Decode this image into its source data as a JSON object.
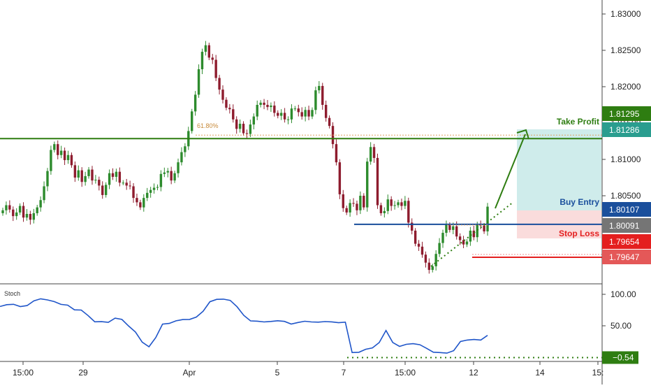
{
  "chart_data": {
    "type": "candlestick",
    "price_axis": {
      "ticks": [
        "1.83000",
        "1.82500",
        "1.82000",
        "1.81500",
        "1.81000",
        "1.80500"
      ],
      "range": [
        1.7935,
        1.8335
      ]
    },
    "time_axis": {
      "ticks": [
        "15:00",
        "29",
        "Apr",
        "5",
        "7",
        "15:00",
        "12",
        "14",
        "15:"
      ]
    },
    "candles_close": [
      1.803,
      1.8037,
      1.8031,
      1.8022,
      1.8027,
      1.8036,
      1.802,
      1.8025,
      1.8017,
      1.8026,
      1.8034,
      1.8044,
      1.8063,
      1.8084,
      1.8113,
      1.8121,
      1.8106,
      1.8112,
      1.8099,
      1.8106,
      1.8092,
      1.8075,
      1.8085,
      1.8069,
      1.8077,
      1.8086,
      1.8071,
      1.8072,
      1.8064,
      1.8051,
      1.8065,
      1.8081,
      1.8076,
      1.8083,
      1.8068,
      1.8068,
      1.8064,
      1.8063,
      1.8047,
      1.8041,
      1.8034,
      1.8047,
      1.8054,
      1.8058,
      1.8061,
      1.8062,
      1.808,
      1.8082,
      1.8084,
      1.8071,
      1.8081,
      1.8096,
      1.811,
      1.8118,
      1.8139,
      1.8166,
      1.8189,
      1.8224,
      1.8248,
      1.8257,
      1.824,
      1.8237,
      1.8212,
      1.8196,
      1.8182,
      1.8171,
      1.8169,
      1.8155,
      1.8142,
      1.8149,
      1.8136,
      1.8135,
      1.8148,
      1.8159,
      1.8175,
      1.8178,
      1.8175,
      1.8172,
      1.8174,
      1.8164,
      1.816,
      1.8164,
      1.8155,
      1.8155,
      1.817,
      1.817,
      1.8165,
      1.8159,
      1.8168,
      1.8159,
      1.8168,
      1.8195,
      1.8201,
      1.8175,
      1.8157,
      1.8146,
      1.8121,
      1.8096,
      1.8052,
      1.8033,
      1.8027,
      1.804,
      1.8039,
      1.803,
      1.805,
      1.8034,
      1.8097,
      1.8117,
      1.8102,
      1.8037,
      1.8026,
      1.8029,
      1.8045,
      1.8036,
      1.8037,
      1.8041,
      1.8036,
      1.8043,
      1.8013,
      1.8002,
      1.7984,
      1.798,
      1.7969,
      1.7958,
      1.7948,
      1.7953,
      1.797,
      1.7985,
      1.7999,
      1.801,
      1.8003,
      1.8008,
      1.7994,
      1.7989,
      1.7983,
      1.7987,
      1.8002,
      1.7993,
      1.801,
      1.8009,
      1.8001,
      1.8035
    ],
    "levels": [
      {
        "label": "Take Profit",
        "value": "1.81286",
        "color": "#2e7d11"
      },
      {
        "label": "Buy Entry",
        "value": "1.80107",
        "color": "#1a4f9c"
      },
      {
        "label": "Stop Loss",
        "value": "1.79654",
        "color": "#e41f1f"
      }
    ],
    "axis_badges": [
      "1.81295",
      "1.81286",
      "1.80107",
      "1.80091",
      "1.79654",
      "1.79647"
    ],
    "fib_label": "61.80%",
    "stoch": {
      "title": "Stoch",
      "ticks": [
        "100.00",
        "50.00"
      ],
      "last_value": "-0.54",
      "values": [
        80.7,
        83.6,
        84.1,
        80.6,
        82.1,
        89.6,
        92.9,
        91.1,
        88.4,
        84.0,
        82.8,
        75.3,
        75.0,
        66.3,
        56.3,
        56.6,
        55.6,
        62.1,
        60.1,
        49.5,
        40.1,
        24.0,
        16.7,
        31.3,
        52.7,
        53.8,
        57.9,
        59.9,
        60.1,
        63.9,
        73.1,
        88.2,
        92.0,
        92.3,
        90.3,
        80.3,
        66.6,
        57.8,
        57.3,
        56.1,
        56.9,
        58.0,
        57.0,
        52.8,
        55.2,
        57.2,
        56.1,
        55.8,
        56.7,
        56.2,
        54.9,
        55.8,
        7.4,
        7.9,
        12.7,
        14.9,
        23.3,
        42.6,
        23.5,
        17.2,
        20.6,
        21.6,
        19.9,
        14.1,
        8.0,
        7.4,
        6.5,
        10.4,
        25.0,
        27.3,
        28.2,
        27.3,
        34.8
      ]
    }
  }
}
